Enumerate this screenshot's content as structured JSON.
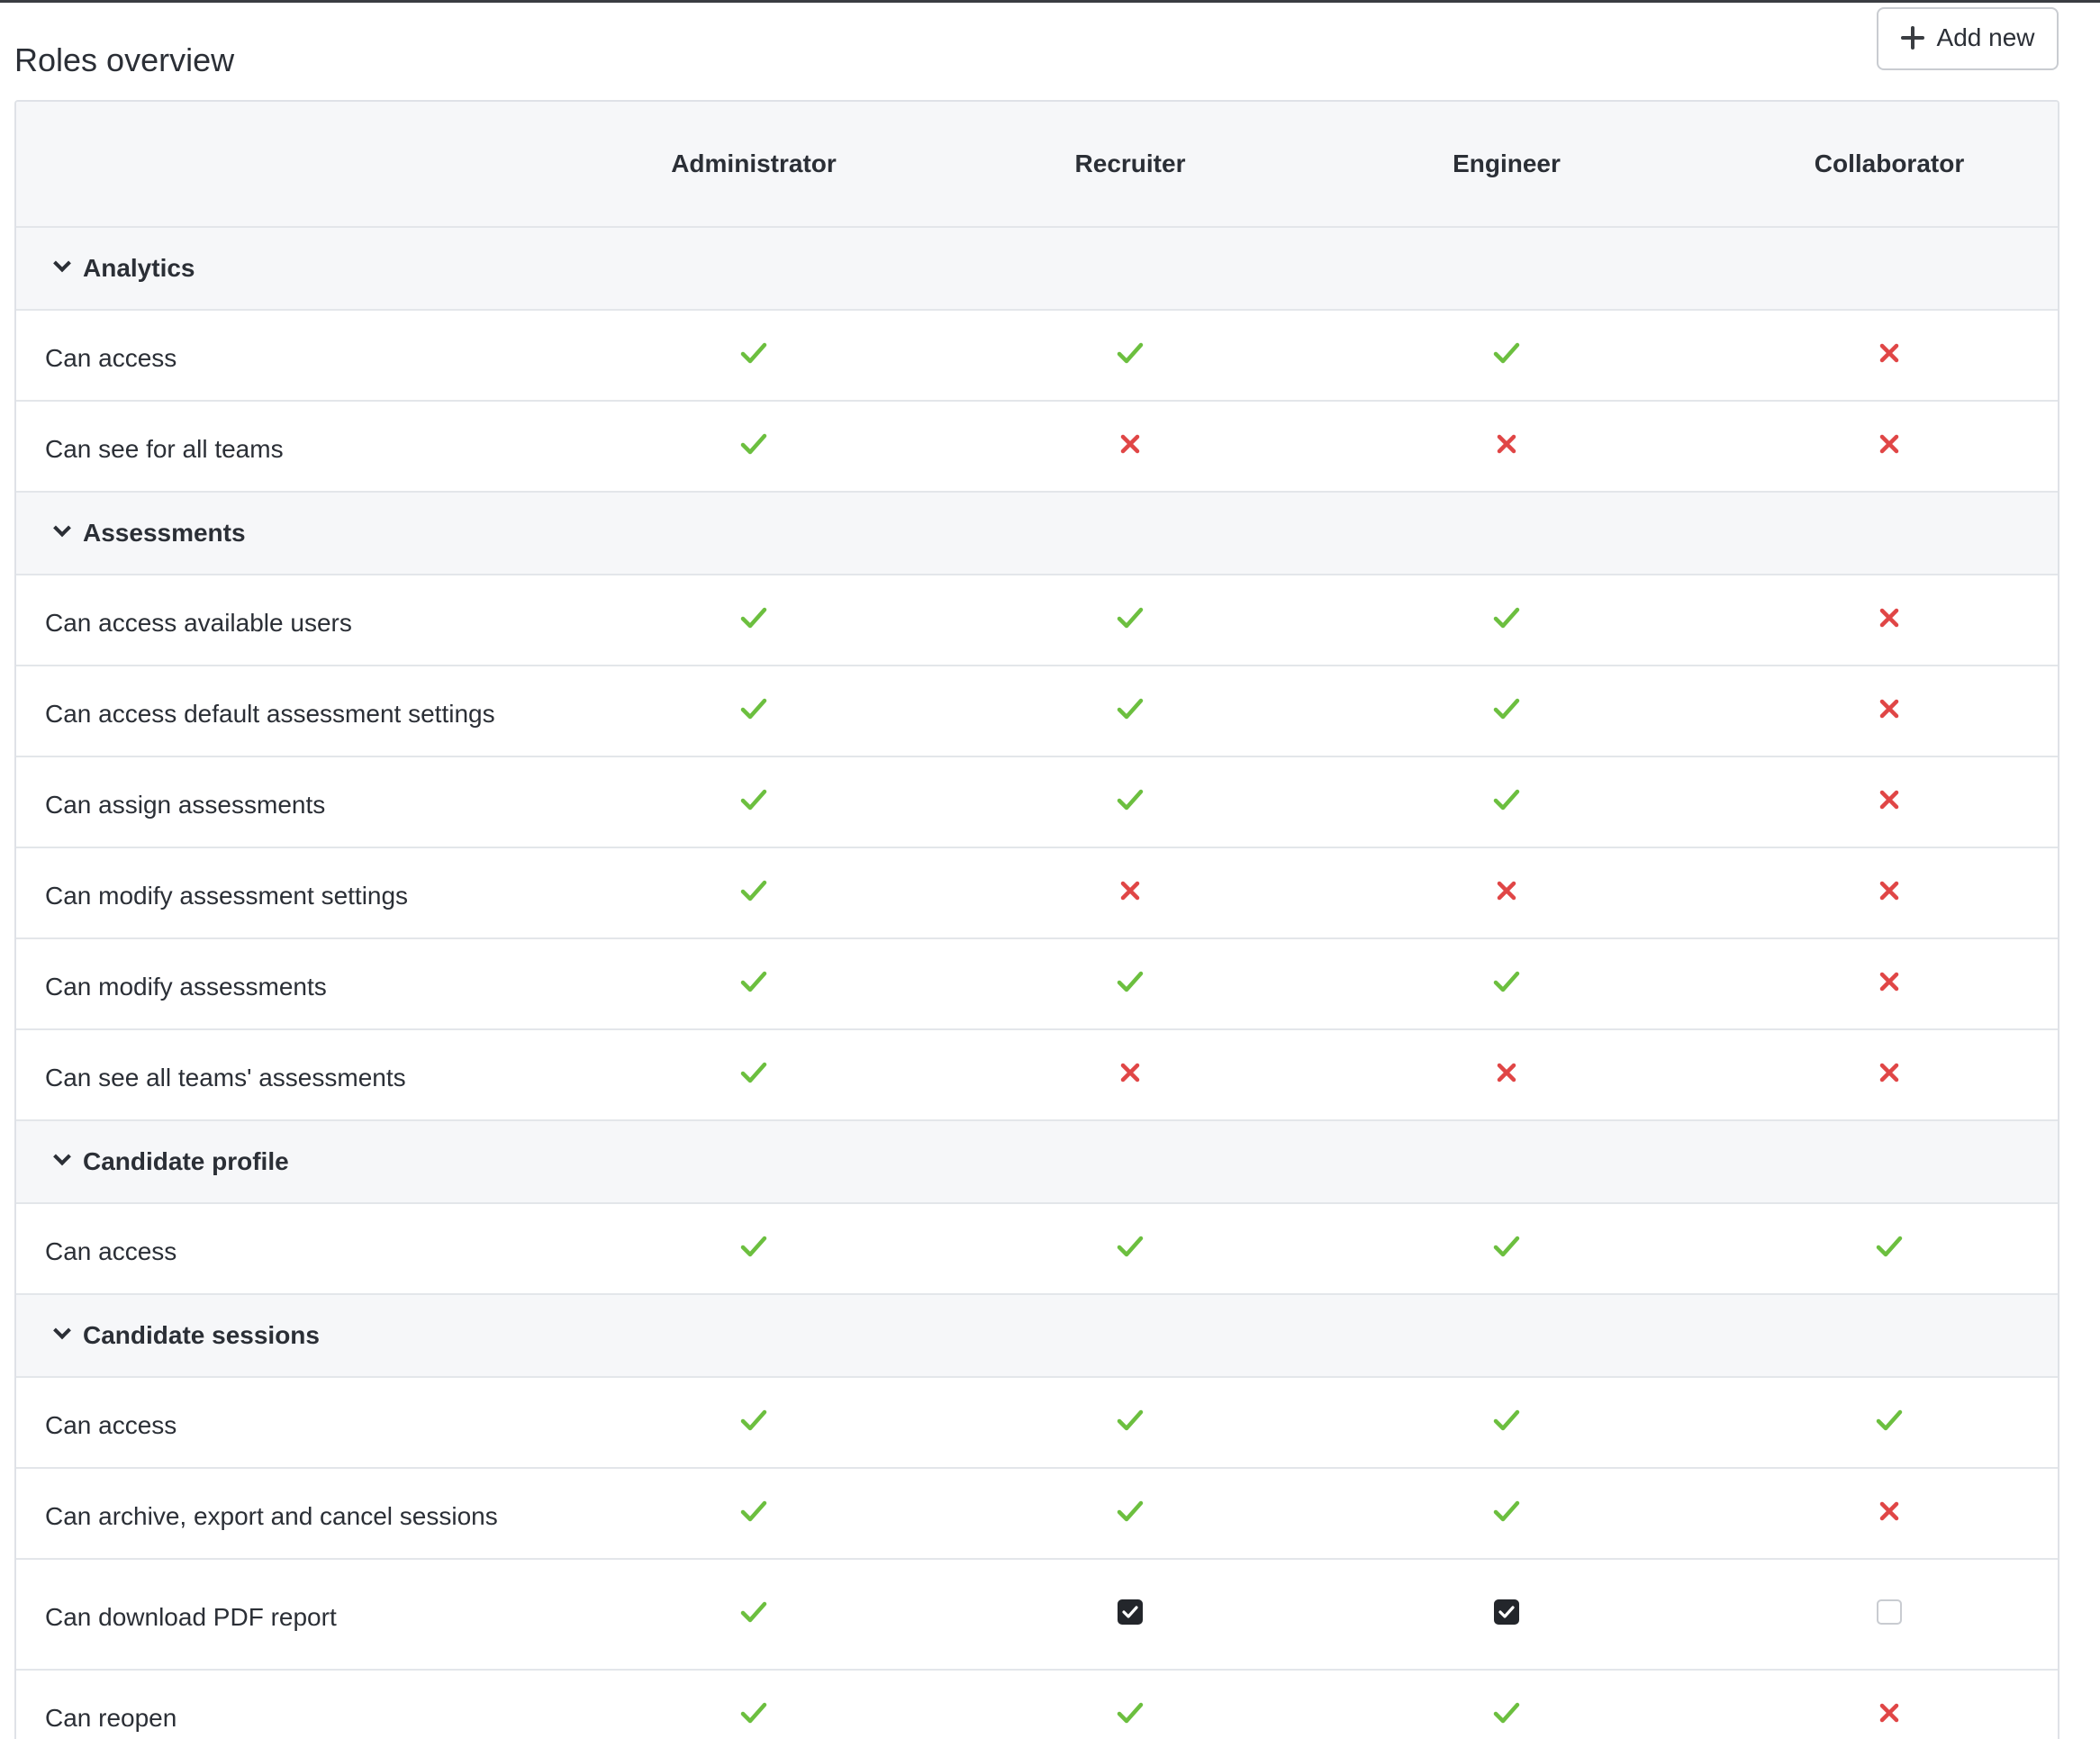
{
  "page": {
    "title": "Roles overview",
    "add_button_label": "Add new"
  },
  "colors": {
    "allowed": "#6cbf3f",
    "denied": "#e04646",
    "header_bg": "#f6f7f9",
    "border": "#e3e6ea"
  },
  "roles": [
    "Administrator",
    "Recruiter",
    "Engineer",
    "Collaborator"
  ],
  "groups": [
    {
      "label": "Analytics",
      "permissions": [
        {
          "label": "Can access",
          "values": [
            "check",
            "check",
            "check",
            "cross"
          ]
        },
        {
          "label": "Can see for all teams",
          "values": [
            "check",
            "cross",
            "cross",
            "cross"
          ]
        }
      ]
    },
    {
      "label": "Assessments",
      "permissions": [
        {
          "label": "Can access available users",
          "values": [
            "check",
            "check",
            "check",
            "cross"
          ]
        },
        {
          "label": "Can access default assessment settings",
          "values": [
            "check",
            "check",
            "check",
            "cross"
          ]
        },
        {
          "label": "Can assign assessments",
          "values": [
            "check",
            "check",
            "check",
            "cross"
          ]
        },
        {
          "label": "Can modify assessment settings",
          "values": [
            "check",
            "cross",
            "cross",
            "cross"
          ]
        },
        {
          "label": "Can modify assessments",
          "values": [
            "check",
            "check",
            "check",
            "cross"
          ]
        },
        {
          "label": "Can see all teams' assessments",
          "values": [
            "check",
            "cross",
            "cross",
            "cross"
          ]
        }
      ]
    },
    {
      "label": "Candidate profile",
      "permissions": [
        {
          "label": "Can access",
          "values": [
            "check",
            "check",
            "check",
            "check"
          ]
        }
      ]
    },
    {
      "label": "Candidate sessions",
      "permissions": [
        {
          "label": "Can access",
          "values": [
            "check",
            "check",
            "check",
            "check"
          ]
        },
        {
          "label": "Can archive, export and cancel sessions",
          "values": [
            "check",
            "check",
            "check",
            "cross"
          ]
        },
        {
          "label": "Can download PDF report",
          "values": [
            "check",
            "checkbox-checked",
            "checkbox-checked",
            "checkbox-unchecked"
          ]
        },
        {
          "label": "Can reopen",
          "values": [
            "check",
            "check",
            "check",
            "cross"
          ]
        }
      ]
    }
  ]
}
